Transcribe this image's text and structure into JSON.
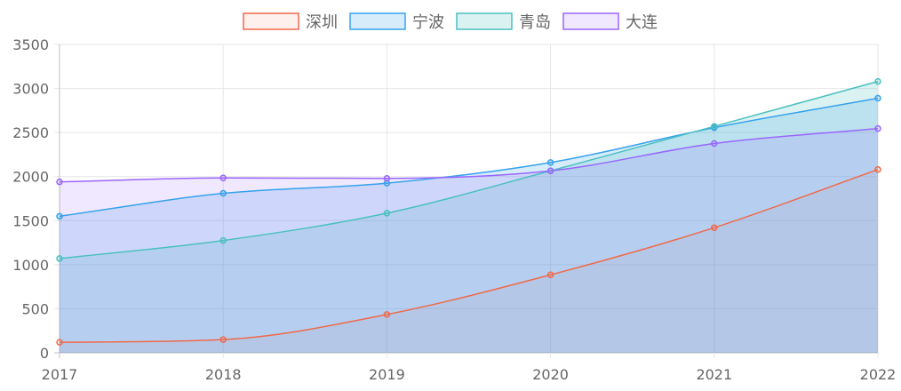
{
  "chart_data": {
    "type": "area",
    "title": "",
    "xlabel": "",
    "ylabel": "",
    "x": [
      "2017",
      "2018",
      "2019",
      "2020",
      "2021",
      "2022"
    ],
    "ylim": [
      0,
      3500
    ],
    "yticks": [
      "0",
      "500",
      "1000",
      "1500",
      "2000",
      "2500",
      "3000",
      "3500"
    ],
    "grid": true,
    "legend_position": "top",
    "series": [
      {
        "name": "深圳",
        "values": [
          120,
          150,
          435,
          885,
          1420,
          2080
        ],
        "color": "#f0694a",
        "fill": "rgba(240,105,74,0.1)"
      },
      {
        "name": "宁波",
        "values": [
          1550,
          1810,
          1925,
          2160,
          2555,
          2890
        ],
        "color": "#36a2eb",
        "fill": "rgba(54,162,235,0.2)"
      },
      {
        "name": "青岛",
        "values": [
          1070,
          1275,
          1585,
          2065,
          2570,
          3080
        ],
        "color": "#4bc0c0",
        "fill": "rgba(75,192,192,0.2)"
      },
      {
        "name": "大连",
        "values": [
          1940,
          1985,
          1980,
          2065,
          2375,
          2545
        ],
        "color": "#9966ff",
        "fill": "rgba(153,102,255,0.15)"
      }
    ]
  }
}
